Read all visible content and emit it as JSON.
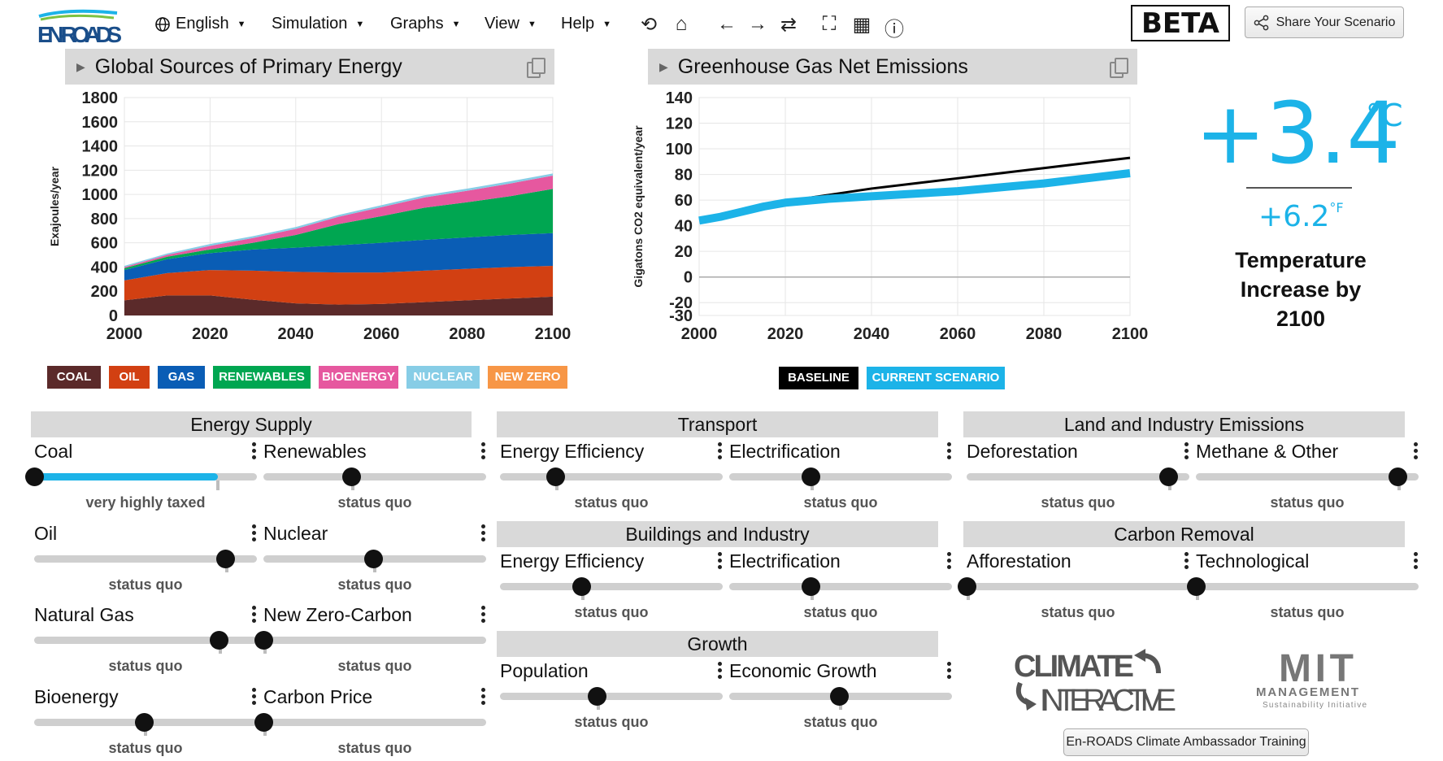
{
  "app": {
    "logo_text": "EN-ROADS",
    "beta": "BETA",
    "share_label": "Share Your Scenario"
  },
  "menu": [
    {
      "label": "English",
      "icon": "globe-icon"
    },
    {
      "label": "Simulation"
    },
    {
      "label": "Graphs"
    },
    {
      "label": "View"
    },
    {
      "label": "Help"
    }
  ],
  "toolbar_icons": [
    "undo-icon",
    "home-icon",
    "back-arrow-icon",
    "forward-arrow-icon",
    "compare-icon",
    "fullscreen-icon",
    "table-icon",
    "info-icon"
  ],
  "graph1": {
    "title": "Global Sources of Primary Energy",
    "legend": [
      {
        "label": "COAL",
        "color": "#5b2a2a"
      },
      {
        "label": "OIL",
        "color": "#d24012"
      },
      {
        "label": "GAS",
        "color": "#0a5db5"
      },
      {
        "label": "RENEWABLES",
        "color": "#00a651"
      },
      {
        "label": "BIOENERGY",
        "color": "#e6589f"
      },
      {
        "label": "NUCLEAR",
        "color": "#87cde6"
      },
      {
        "label": "NEW ZERO",
        "color": "#f79646"
      }
    ]
  },
  "graph2": {
    "title": "Greenhouse Gas Net Emissions",
    "legend": [
      {
        "label": "BASELINE",
        "color": "#000000"
      },
      {
        "label": "CURRENT SCENARIO",
        "color": "#1cb3e8"
      }
    ]
  },
  "chart_data": [
    {
      "type": "area",
      "title": "Global Sources of Primary Energy",
      "xlabel": "",
      "ylabel": "Exajoules/year",
      "x": [
        2000,
        2010,
        2020,
        2030,
        2040,
        2050,
        2060,
        2070,
        2080,
        2090,
        2100
      ],
      "xticks": [
        2000,
        2020,
        2040,
        2060,
        2080,
        2100
      ],
      "yticks": [
        0,
        200,
        400,
        600,
        800,
        1000,
        1200,
        1400,
        1600,
        1800
      ],
      "ylim": [
        0,
        1800
      ],
      "stacked": true,
      "series": [
        {
          "name": "COAL",
          "values": [
            125,
            165,
            165,
            130,
            100,
            90,
            95,
            110,
            125,
            140,
            155
          ]
        },
        {
          "name": "OIL",
          "values": [
            165,
            185,
            210,
            240,
            260,
            265,
            260,
            260,
            260,
            260,
            255
          ]
        },
        {
          "name": "GAS",
          "values": [
            85,
            115,
            140,
            175,
            200,
            225,
            245,
            255,
            260,
            265,
            270
          ]
        },
        {
          "name": "RENEWABLES",
          "values": [
            15,
            20,
            30,
            55,
            105,
            175,
            220,
            265,
            290,
            320,
            365
          ]
        },
        {
          "name": "BIOENERGY",
          "values": [
            10,
            15,
            30,
            40,
            50,
            60,
            75,
            85,
            95,
            105,
            110
          ]
        },
        {
          "name": "NUCLEAR",
          "values": [
            10,
            12,
            15,
            15,
            15,
            15,
            16,
            17,
            18,
            18,
            18
          ]
        },
        {
          "name": "NEW ZERO",
          "values": [
            0,
            0,
            0,
            0,
            0,
            0,
            0,
            0,
            0,
            0,
            0
          ]
        }
      ],
      "grid": true
    },
    {
      "type": "line",
      "title": "Greenhouse Gas Net Emissions",
      "xlabel": "",
      "ylabel": "Gigatons CO2 equivalent/year",
      "x": [
        2000,
        2005,
        2010,
        2015,
        2020,
        2030,
        2040,
        2050,
        2060,
        2070,
        2080,
        2090,
        2100
      ],
      "xticks": [
        2000,
        2020,
        2040,
        2060,
        2080,
        2100
      ],
      "yticks": [
        -30,
        -20,
        0,
        20,
        40,
        60,
        80,
        100,
        120,
        140
      ],
      "ylim": [
        -30,
        140
      ],
      "series": [
        {
          "name": "BASELINE",
          "values": [
            45,
            48,
            52,
            56,
            59,
            64,
            69,
            73,
            77,
            81,
            85,
            89,
            93
          ]
        },
        {
          "name": "CURRENT SCENARIO",
          "values": [
            44,
            47,
            51,
            55,
            58,
            61,
            63,
            65,
            67,
            70,
            73,
            77,
            81
          ]
        }
      ],
      "grid": true
    }
  ],
  "temperature": {
    "celsius": "+3.4",
    "celsius_unit": "°C",
    "fahrenheit": "+6.2",
    "fahrenheit_unit": "°F",
    "caption_1": "Temperature",
    "caption_2": "Increase by",
    "caption_3": "2100"
  },
  "panels": {
    "energy_supply": "Energy Supply",
    "transport": "Transport",
    "buildings": "Buildings and Industry",
    "growth": "Growth",
    "land": "Land and Industry Emissions",
    "carbon_removal": "Carbon Removal"
  },
  "sliders": [
    {
      "id": "coal",
      "label": "Coal",
      "status": "very highly taxed",
      "value": 0.0,
      "fill": true
    },
    {
      "id": "renewables",
      "label": "Renewables",
      "status": "status quo",
      "value": 0.4
    },
    {
      "id": "oil",
      "label": "Oil",
      "status": "status quo",
      "value": 0.87
    },
    {
      "id": "nuclear",
      "label": "Nuclear",
      "status": "status quo",
      "value": 0.5
    },
    {
      "id": "natural-gas",
      "label": "Natural Gas",
      "status": "status quo",
      "value": 0.84
    },
    {
      "id": "new-zero-carbon",
      "label": "New Zero-Carbon",
      "status": "status quo",
      "value": 0.0
    },
    {
      "id": "bioenergy",
      "label": "Bioenergy",
      "status": "status quo",
      "value": 0.5
    },
    {
      "id": "carbon-price",
      "label": "Carbon Price",
      "status": "status quo",
      "value": 0.0
    },
    {
      "id": "transport-efficiency",
      "label": "Energy Efficiency",
      "status": "status quo",
      "value": 0.25
    },
    {
      "id": "transport-electrification",
      "label": "Electrification",
      "status": "status quo",
      "value": 0.37
    },
    {
      "id": "buildings-efficiency",
      "label": "Energy Efficiency",
      "status": "status quo",
      "value": 0.37
    },
    {
      "id": "buildings-electrification",
      "label": "Electrification",
      "status": "status quo",
      "value": 0.37
    },
    {
      "id": "population",
      "label": "Population",
      "status": "status quo",
      "value": 0.44
    },
    {
      "id": "economic-growth",
      "label": "Economic Growth",
      "status": "status quo",
      "value": 0.5
    },
    {
      "id": "deforestation",
      "label": "Deforestation",
      "status": "status quo",
      "value": 0.92
    },
    {
      "id": "methane",
      "label": "Methane & Other",
      "status": "status quo",
      "value": 0.92
    },
    {
      "id": "afforestation",
      "label": "Afforestation",
      "status": "status quo",
      "value": 0.0
    },
    {
      "id": "technological",
      "label": "Technological",
      "status": "status quo",
      "value": 0.0
    }
  ],
  "logos": {
    "climate_1": "CLIMATE",
    "climate_2": "INTERACTIVE",
    "mit_1": "MIT",
    "mit_2": "MANAGEMENT",
    "mit_3": "Sustainability Initiative"
  },
  "training_label": "En-ROADS Climate Ambassador Training"
}
